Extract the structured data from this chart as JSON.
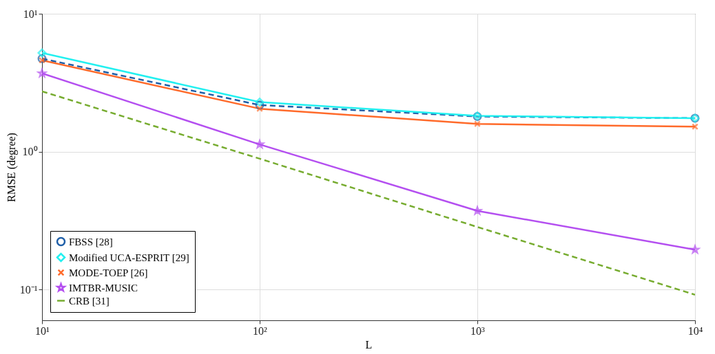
{
  "chart_data": {
    "type": "line",
    "xlabel": "L",
    "ylabel": "RMSE (degree)",
    "log": "xy",
    "grid": true,
    "legend": "bottom left",
    "xlim": [
      10,
      10000
    ],
    "ylim": [
      0.06,
      10
    ],
    "xticks": [
      {
        "value": 10,
        "label": "10¹"
      },
      {
        "value": 100,
        "label": "10²"
      },
      {
        "value": 1000,
        "label": "10³"
      },
      {
        "value": 10000,
        "label": "10⁴"
      }
    ],
    "yticks": [
      {
        "value": 0.1,
        "label": "10⁻¹"
      },
      {
        "value": 1,
        "label": "10⁰"
      },
      {
        "value": 10,
        "label": "10¹"
      }
    ],
    "x": [
      10,
      100,
      1000,
      10000
    ],
    "series": [
      {
        "name": "FBSS [28]",
        "color": "#1f5fa8",
        "marker": "circle",
        "line_style": "dashed",
        "values": [
          4.73,
          2.18,
          1.8,
          1.75
        ]
      },
      {
        "name": "Modified UCA-ESPRIT [29]",
        "color": "#22f0f0",
        "marker": "diamond",
        "line_style": "solid",
        "values": [
          5.2,
          2.29,
          1.82,
          1.75
        ]
      },
      {
        "name": "MODE-TOEP [26]",
        "color": "#ff6a2a",
        "marker": "cross",
        "line_style": "solid",
        "values": [
          4.6,
          2.05,
          1.59,
          1.52
        ]
      },
      {
        "name": "IMTBR-MUSIC",
        "color": "#b44ff0",
        "marker": "star",
        "line_style": "solid",
        "values": [
          3.7,
          1.13,
          0.373,
          0.195
        ]
      },
      {
        "name": "CRB [31]",
        "color": "#77ac30",
        "marker": "none",
        "line_style": "dashed",
        "values": [
          2.74,
          0.89,
          0.285,
          0.092
        ]
      }
    ]
  }
}
